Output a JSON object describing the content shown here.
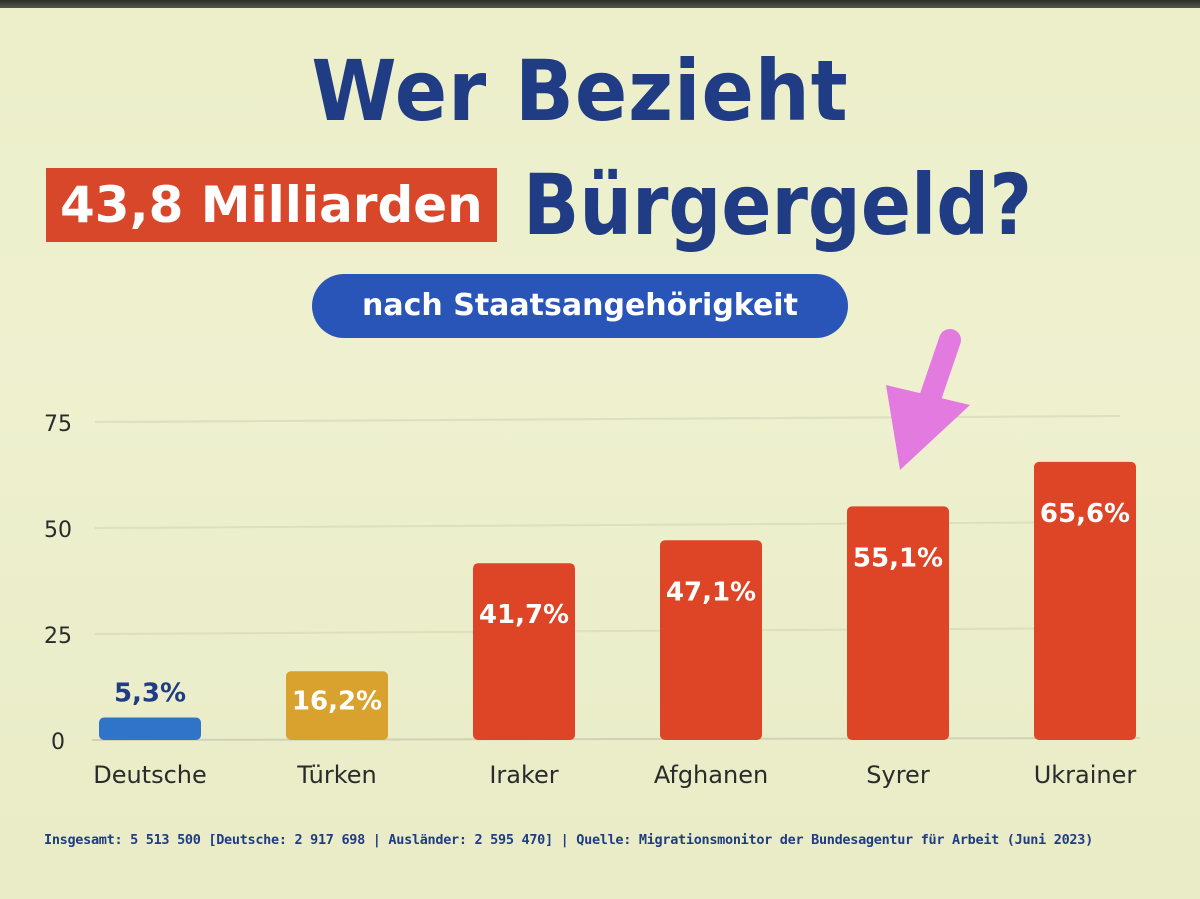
{
  "title": {
    "line1": "Wer Bezieht",
    "highlight": "43,8 Milliarden",
    "line2": "Bürgergeld?"
  },
  "subtitle": "nach Staatsangehörigkeit",
  "footer": "Insgesamt: 5 513 500 [Deutsche: 2 917 698 | Ausländer: 2 595 470] | Quelle: Migrationsmonitor der Bundesagentur für Arbeit (Juni 2023)",
  "colors": {
    "background": "#eef0cf",
    "title": "#1f3c84",
    "highlight_box": "#d9472a",
    "pill": "#2a55b8",
    "deutsche_bar": "#2f74c8",
    "tuerken_bar": "#d9a22e",
    "other_bars": "#dd4526",
    "arrow": "#e27ae0"
  },
  "chart_data": {
    "type": "bar",
    "title": "Wer Bezieht 43,8 Milliarden Bürgergeld?",
    "subtitle": "nach Staatsangehörigkeit",
    "categories": [
      "Deutsche",
      "Türken",
      "Iraker",
      "Afghanen",
      "Syrer",
      "Ukrainer"
    ],
    "values": [
      5.3,
      16.2,
      41.7,
      47.1,
      55.1,
      65.6
    ],
    "labels": [
      "5,3%",
      "16,2%",
      "41,7%",
      "47,1%",
      "55,1%",
      "65,6%"
    ],
    "yticks": [
      0,
      25,
      50,
      75
    ],
    "ylim": [
      0,
      75
    ],
    "xlabel": "",
    "ylabel": "",
    "grid": true,
    "annotation": "arrow pointing at Syrer"
  }
}
